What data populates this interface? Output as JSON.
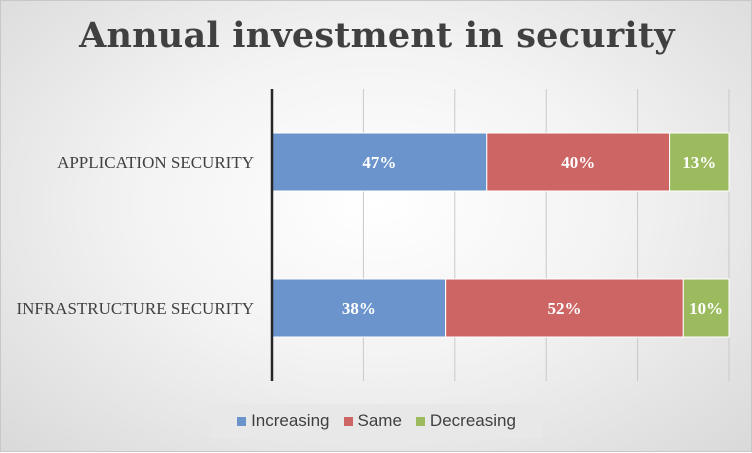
{
  "chart_data": {
    "type": "bar",
    "orientation": "horizontal",
    "stacked": true,
    "percent": true,
    "title": "Annual investment in security",
    "categories": [
      "APPLICATION SECURITY",
      "INFRASTRUCTURE SECURITY"
    ],
    "series": [
      {
        "name": "Increasing",
        "values": [
          47,
          38
        ],
        "labels": [
          "47%",
          "38%"
        ],
        "color": "#6a94cb"
      },
      {
        "name": "Same",
        "values": [
          40,
          52
        ],
        "labels": [
          "40%",
          "52%"
        ],
        "color": "#cd6565"
      },
      {
        "name": "Decreasing",
        "values": [
          13,
          10
        ],
        "labels": [
          "13%",
          "10%"
        ],
        "color": "#9cbb5f"
      }
    ],
    "xlim": [
      0,
      100
    ],
    "grid": true,
    "legend_position": "bottom"
  }
}
